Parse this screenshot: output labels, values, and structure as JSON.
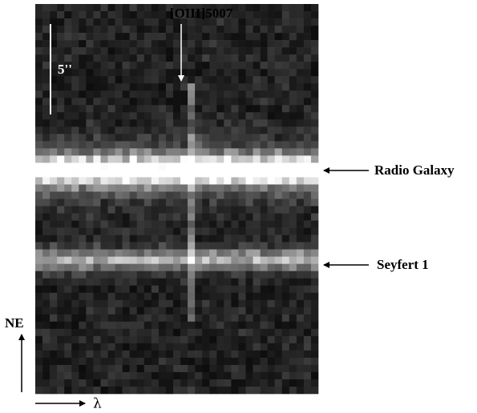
{
  "figure": {
    "line_label": "[OIII]5007",
    "scale_label": "5''",
    "targets": [
      "Radio Galaxy",
      "Seyfert 1"
    ],
    "north_label": "NE",
    "dispersion_label": "λ"
  }
}
